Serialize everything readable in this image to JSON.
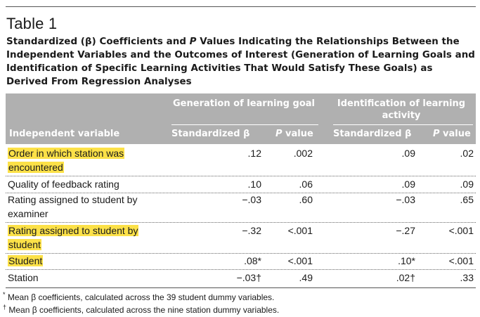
{
  "table_number": "Table 1",
  "title": {
    "pre": "Standardized (β) Coefficients and ",
    "p": "P",
    "post": " Values Indicating the Relationships Between the Independent Variables and the Outcomes of Interest (Generation of Learning Goals and Identification of Specific Learning Activities That Would Satisfy These Goals) as Derived From Regression Analyses"
  },
  "header": {
    "group1": "Generation of learning goal",
    "group2": "Identification of learning activity",
    "independent_variable": "Independent variable",
    "std_beta": "Standardized β",
    "p_value": "P value"
  },
  "rows": [
    {
      "label": "Order in which station was encountered",
      "lines": [
        "Order in which station was",
        "encountered"
      ],
      "highlight": true,
      "beta1": ".12",
      "p1": ".002",
      "beta2": ".09",
      "p2": ".02"
    },
    {
      "label": "Quality of feedback rating",
      "lines": [
        "Quality of feedback rating"
      ],
      "highlight": false,
      "beta1": ".10",
      "p1": ".06",
      "beta2": ".09",
      "p2": ".09"
    },
    {
      "label": "Rating assigned to student by examiner",
      "lines": [
        "Rating assigned to student by",
        "examiner"
      ],
      "highlight": false,
      "beta1": "−.03",
      "p1": ".60",
      "beta2": "−.03",
      "p2": ".65"
    },
    {
      "label": "Rating assigned to student by student",
      "lines": [
        "Rating assigned to student by",
        "student"
      ],
      "highlight": true,
      "beta1": "−.32",
      "p1": "<.001",
      "beta2": "−.27",
      "p2": "<.001"
    },
    {
      "label": "Student",
      "lines": [
        "Student"
      ],
      "highlight": true,
      "beta1": ".08*",
      "p1": "<.001",
      "beta2": ".10*",
      "p2": "<.001"
    },
    {
      "label": "Station",
      "lines": [
        "Station"
      ],
      "highlight": false,
      "beta1": "−.03†",
      "p1": ".49",
      "beta2": ".02†",
      "p2": ".33"
    }
  ],
  "footnotes": [
    {
      "mark": "*",
      "text": " Mean β coefficients, calculated across the 39 student dummy variables."
    },
    {
      "mark": "†",
      "text": " Mean β coefficients, calculated across the nine station dummy variables."
    }
  ],
  "colors": {
    "header_bg": "#b0b0b0",
    "highlight": "#fce148"
  }
}
